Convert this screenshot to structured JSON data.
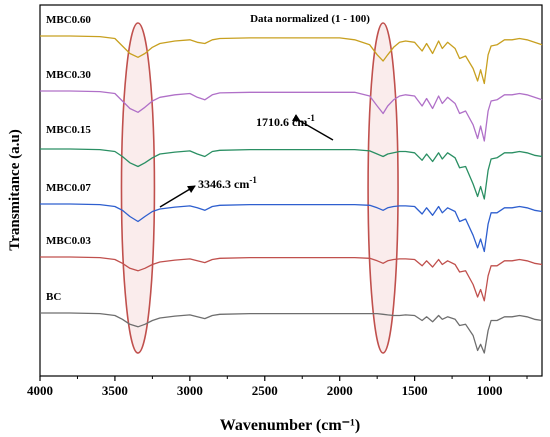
{
  "chart_data": {
    "type": "line",
    "title": "Data normalized (1 - 100)",
    "xlabel": "Wavenumber (cm⁻¹)",
    "ylabel": "Transmitance (a.u)",
    "xlim": [
      4000,
      650
    ],
    "x_reversed": true,
    "x_ticks": [
      4000,
      3500,
      3000,
      2500,
      2000,
      1500,
      1000
    ],
    "y_ticks_shown": false,
    "grid": false,
    "legend": "series labels placed left, above each trace",
    "offset_stacked": true,
    "x": [
      4000,
      3800,
      3600,
      3500,
      3450,
      3400,
      3346.3,
      3300,
      3250,
      3200,
      3100,
      3000,
      2950,
      2900,
      2850,
      2800,
      2600,
      2400,
      2200,
      2000,
      1900,
      1800,
      1750,
      1710.6,
      1680,
      1640,
      1600,
      1560,
      1500,
      1450,
      1420,
      1380,
      1340,
      1315,
      1280,
      1230,
      1200,
      1160,
      1110,
      1080,
      1060,
      1035,
      1010,
      990,
      950,
      900,
      850,
      800,
      750,
      700,
      650
    ],
    "series": [
      {
        "name": "BC",
        "color": "#6e6e6e",
        "values": [
          0,
          0,
          0.5,
          2,
          5,
          9,
          11,
          9,
          6,
          4,
          2.5,
          1.5,
          3,
          4.5,
          2,
          1,
          0.5,
          0.5,
          0.5,
          0.5,
          0.5,
          0.5,
          0.5,
          1,
          1.5,
          2,
          2,
          1.5,
          2,
          6,
          3,
          7,
          2,
          5,
          3,
          5,
          10,
          9,
          18,
          30,
          25,
          32,
          14,
          6,
          6,
          3,
          3,
          2,
          3,
          5,
          6
        ]
      },
      {
        "name": "MBC0.03",
        "color": "#c0504d",
        "values": [
          0,
          0,
          0.5,
          2,
          5,
          9,
          11,
          9,
          6,
          4,
          2.5,
          1.5,
          3,
          4.5,
          2,
          1,
          0.5,
          0.5,
          0.5,
          0.5,
          0.5,
          1,
          3,
          5,
          3,
          2,
          1.5,
          1.5,
          2,
          7,
          3,
          8,
          2,
          6,
          3,
          6,
          12,
          11,
          22,
          32,
          26,
          35,
          15,
          7,
          7,
          3,
          3,
          2,
          3,
          5,
          6
        ]
      },
      {
        "name": "MBC0.07",
        "color": "#2e5fcf",
        "values": [
          0,
          0,
          0.5,
          2,
          5,
          10,
          14,
          10,
          6,
          4,
          2.5,
          1.5,
          3,
          5,
          2,
          1,
          0.5,
          0.5,
          0.5,
          0.5,
          0.5,
          1,
          3,
          5,
          3,
          2,
          1.5,
          1.5,
          2,
          8,
          3,
          9,
          2,
          7,
          3,
          6,
          14,
          12,
          25,
          35,
          28,
          38,
          16,
          7,
          7,
          3,
          3,
          2,
          3,
          5,
          6
        ]
      },
      {
        "name": "MBC0.15",
        "color": "#2a8f63",
        "values": [
          0,
          0,
          0.5,
          2,
          6,
          11,
          14,
          11,
          7,
          4,
          2.5,
          1.5,
          4,
          6,
          2,
          1,
          0.5,
          0.5,
          0.5,
          0.5,
          0.5,
          1.5,
          4,
          6,
          4,
          3,
          2,
          2,
          3,
          9,
          4,
          10,
          3,
          8,
          3,
          7,
          15,
          14,
          28,
          38,
          30,
          40,
          17,
          8,
          7,
          3,
          3,
          2,
          3,
          5,
          6
        ]
      },
      {
        "name": "MBC0.30",
        "color": "#b070c8",
        "values": [
          0,
          0,
          0.5,
          2,
          8,
          14,
          17,
          13,
          8,
          5,
          3,
          2,
          5,
          7,
          3,
          1.5,
          1,
          1,
          1,
          1,
          1,
          4,
          12,
          18,
          12,
          7,
          4,
          3,
          4,
          12,
          6,
          14,
          4,
          10,
          5,
          10,
          18,
          16,
          27,
          38,
          28,
          40,
          16,
          8,
          7,
          3,
          3,
          2,
          3,
          5,
          7
        ]
      },
      {
        "name": "MBC0.60",
        "color": "#c8a020",
        "values": [
          0,
          0,
          0.5,
          2,
          8,
          14,
          17,
          14,
          9,
          6,
          4,
          3,
          5,
          6,
          3,
          2,
          1.5,
          1.5,
          1.5,
          1.5,
          3,
          7,
          15,
          20,
          15,
          9,
          5,
          4,
          5,
          12,
          6,
          14,
          4,
          10,
          5,
          10,
          18,
          16,
          26,
          36,
          27,
          38,
          15,
          8,
          7,
          3,
          3,
          2,
          3,
          5,
          7
        ]
      }
    ],
    "highlight_regions": [
      {
        "center": 3346.3,
        "half_width": 110,
        "color": "#c0504d"
      },
      {
        "center": 1710.6,
        "half_width": 100,
        "color": "#c0504d"
      }
    ],
    "annotations": [
      {
        "text": "3346.3 cm",
        "sup": "-1",
        "arrow_to_x": 3346.3
      },
      {
        "text": "1710.6 cm",
        "sup": "-1",
        "arrow_to_x": 1710.6
      }
    ]
  }
}
